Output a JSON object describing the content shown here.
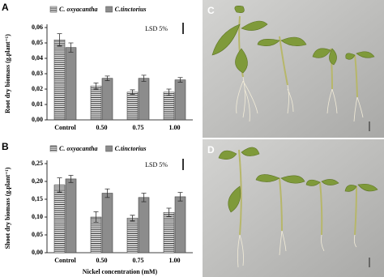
{
  "chart_data": [
    {
      "type": "bar",
      "panel": "A",
      "ylabel": "Root dry biomass (g.plant⁻¹)",
      "annotation": "LSD 5%",
      "categories": [
        "Control",
        "0.50",
        "0.75",
        "1.00"
      ],
      "series": [
        {
          "name": "C. oxyacantha",
          "color": "#ffffff",
          "hatch": "horizontal",
          "values": [
            0.052,
            0.022,
            0.018,
            0.018
          ],
          "errors": [
            0.004,
            0.002,
            0.0015,
            0.002
          ]
        },
        {
          "name": "C.tinctorius",
          "color": "#8c8c8c",
          "values": [
            0.047,
            0.027,
            0.027,
            0.026
          ],
          "errors": [
            0.003,
            0.0015,
            0.002,
            0.0015
          ]
        }
      ],
      "ylim": [
        0,
        0.06
      ],
      "yticks": [
        {
          "value": 0,
          "label": "0,00"
        },
        {
          "value": 0.01,
          "label": "0,01"
        },
        {
          "value": 0.02,
          "label": "0,02"
        },
        {
          "value": 0.03,
          "label": "0,03"
        },
        {
          "value": 0.04,
          "label": "0,04"
        },
        {
          "value": 0.05,
          "label": "0,05"
        },
        {
          "value": 0.06,
          "label": "0,06"
        }
      ]
    },
    {
      "type": "bar",
      "panel": "B",
      "ylabel": "Shoot dry biomass (g.plant⁻¹)",
      "xlabel": "Nickel concentration (mM)",
      "annotation": "LSD 5%",
      "categories": [
        "Control",
        "0.50",
        "0.75",
        "1.00"
      ],
      "series": [
        {
          "name": "C. oxyacantha",
          "color": "#ffffff",
          "hatch": "horizontal",
          "values": [
            0.19,
            0.1,
            0.097,
            0.113
          ],
          "errors": [
            0.02,
            0.015,
            0.008,
            0.012
          ]
        },
        {
          "name": "C.tinctorius",
          "color": "#8c8c8c",
          "values": [
            0.207,
            0.167,
            0.155,
            0.157
          ],
          "errors": [
            0.01,
            0.012,
            0.012,
            0.012
          ]
        }
      ],
      "ylim": [
        0,
        0.25
      ],
      "yticks": [
        {
          "value": 0,
          "label": "0,00"
        },
        {
          "value": 0.05,
          "label": "0,05"
        },
        {
          "value": 0.1,
          "label": "0,10"
        },
        {
          "value": 0.15,
          "label": "0,15"
        },
        {
          "value": 0.2,
          "label": "0,20"
        },
        {
          "value": 0.25,
          "label": "0,25"
        }
      ]
    }
  ],
  "photos": [
    {
      "label": "C"
    },
    {
      "label": "D"
    }
  ]
}
